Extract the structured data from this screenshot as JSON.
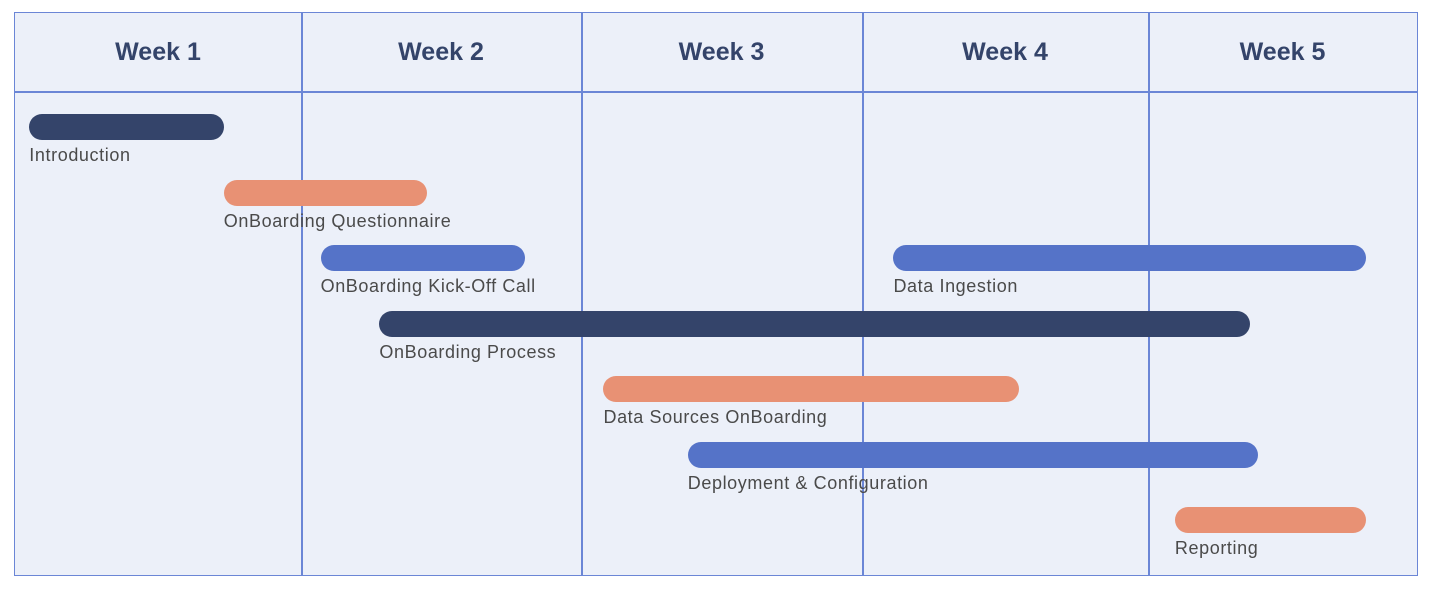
{
  "chart_data": {
    "type": "gantt",
    "title": "",
    "x_unit": "week",
    "categories": [
      "Week 1",
      "Week 2",
      "Week 3",
      "Week 4",
      "Week 5"
    ],
    "xlim": [
      0,
      5
    ],
    "colors": {
      "dark": "#34446a",
      "salmon": "#e89174",
      "blue": "#5573c8"
    },
    "tasks": [
      {
        "label": "Introduction",
        "start": 0.05,
        "end": 0.73,
        "row": 0,
        "color": "#34446a"
      },
      {
        "label": "OnBoarding Questionnaire",
        "start": 0.73,
        "end": 1.45,
        "row": 1,
        "color": "#e89174"
      },
      {
        "label": "OnBoarding Kick-Off Call",
        "start": 1.07,
        "end": 1.8,
        "row": 2,
        "color": "#5573c8"
      },
      {
        "label": "Data Ingestion",
        "start": 3.11,
        "end": 4.81,
        "row": 2,
        "color": "#5573c8"
      },
      {
        "label": "OnBoarding Process",
        "start": 1.28,
        "end": 4.38,
        "row": 3,
        "color": "#34446a"
      },
      {
        "label": "Data Sources OnBoarding",
        "start": 2.08,
        "end": 3.55,
        "row": 4,
        "color": "#e89174"
      },
      {
        "label": "Deployment & Configuration",
        "start": 2.38,
        "end": 4.41,
        "row": 5,
        "color": "#5573c8"
      },
      {
        "label": "Reporting",
        "start": 4.1,
        "end": 4.81,
        "row": 6,
        "color": "#e89174"
      }
    ]
  }
}
